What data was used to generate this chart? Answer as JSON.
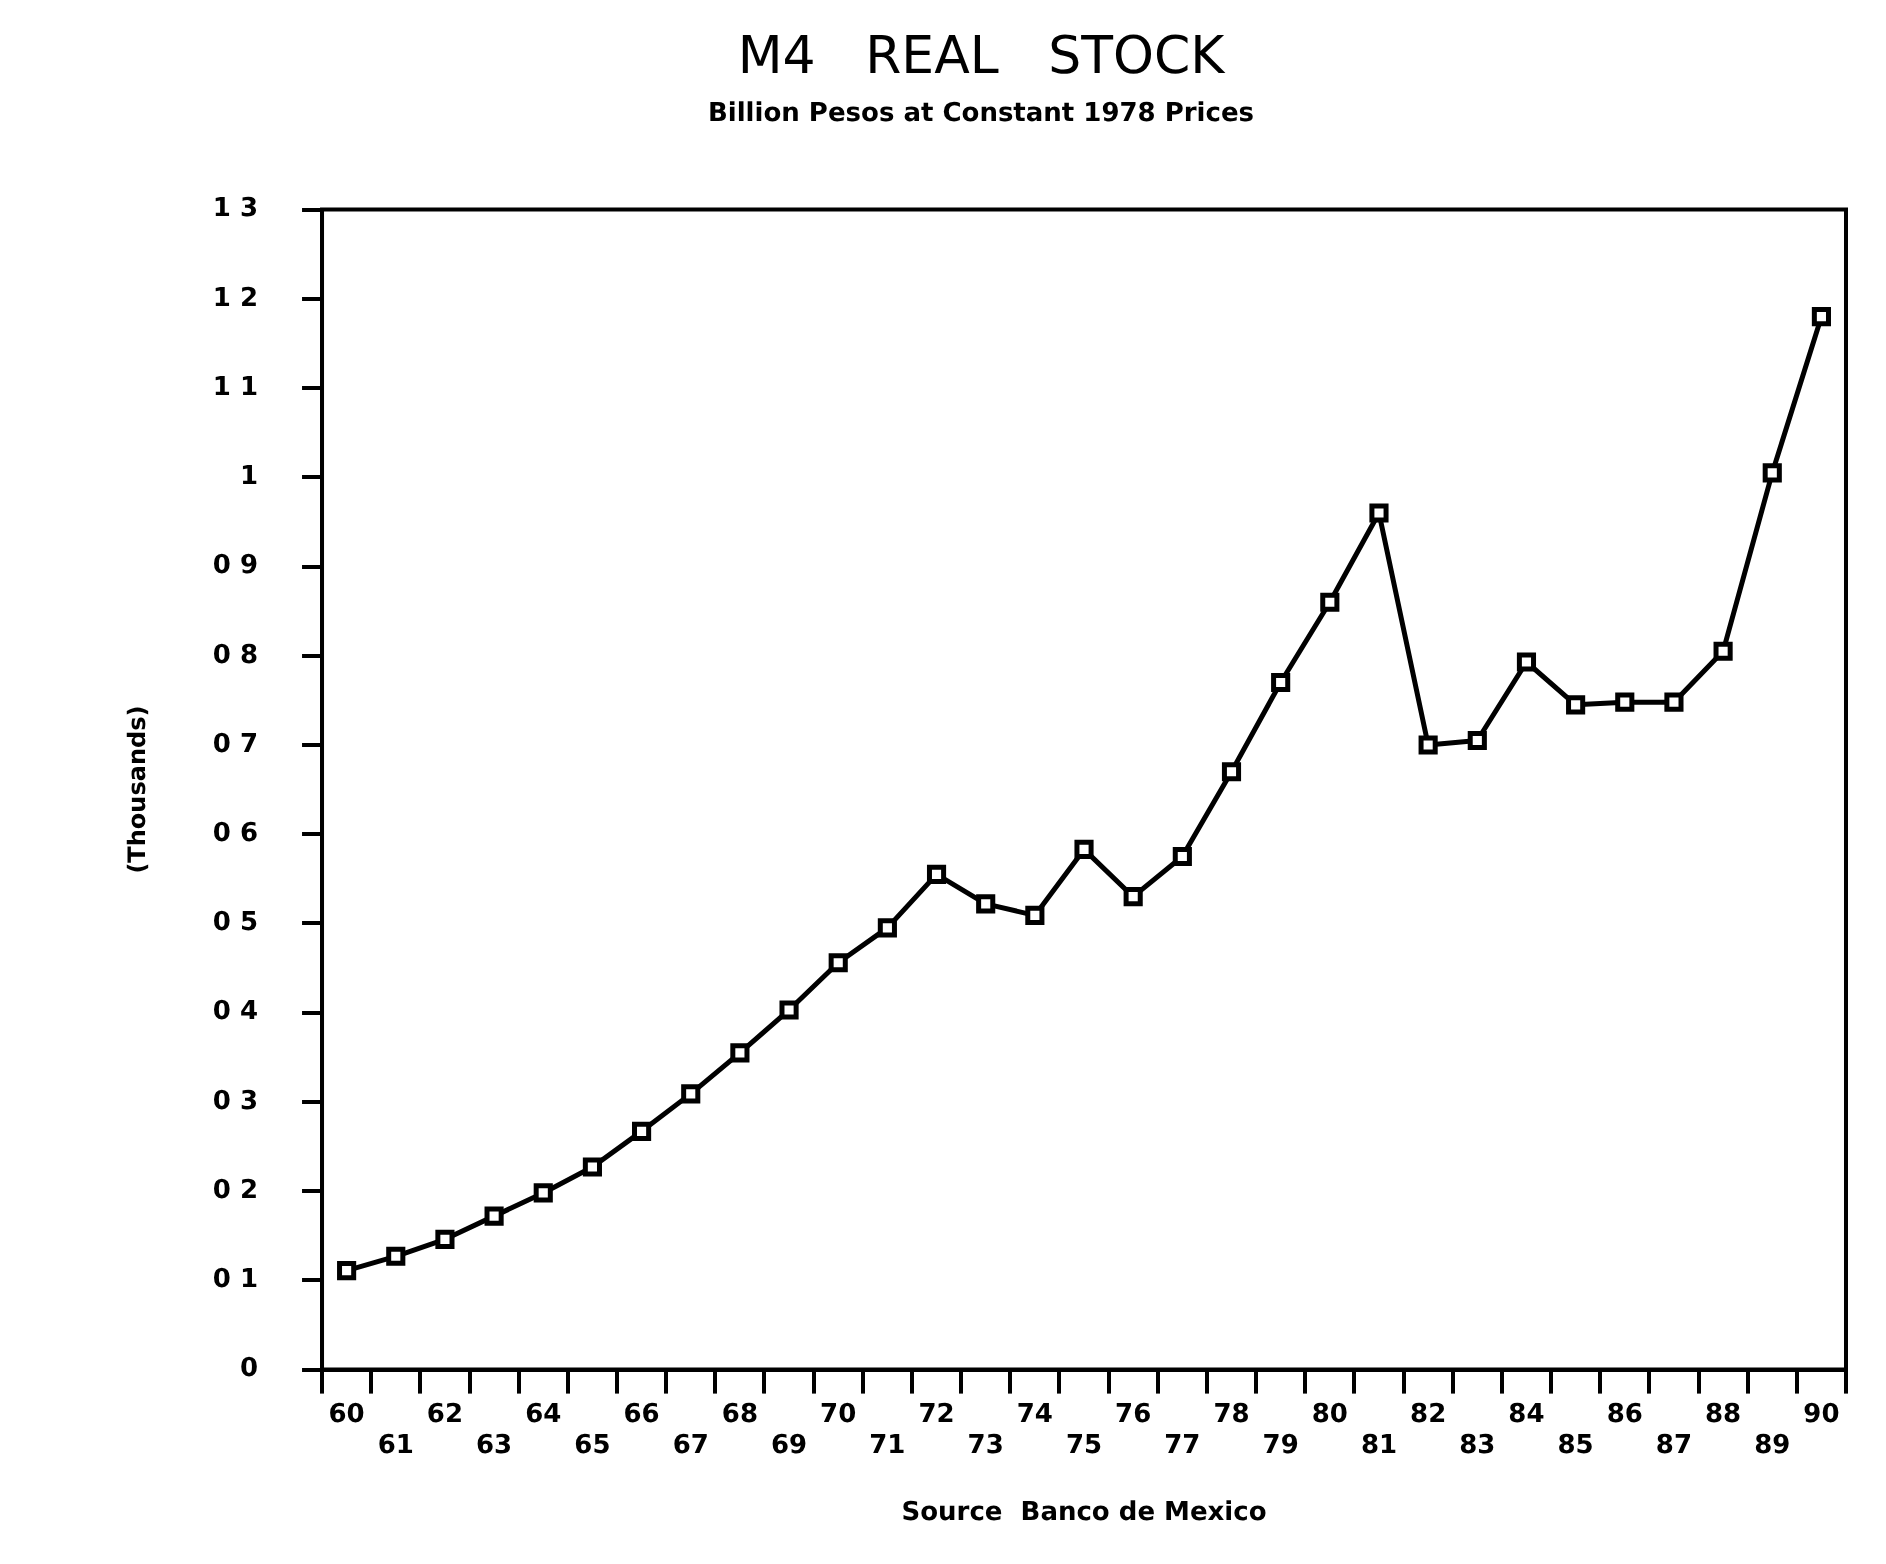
{
  "chart_data": {
    "type": "line",
    "title": "M4   REAL   STOCK",
    "subtitle": "Billion Pesos at Constant 1978 Prices",
    "ylabel": "(Thousands)",
    "annotations": [
      "Source  Banco de Mexico"
    ],
    "categories": [
      "60",
      "61",
      "62",
      "63",
      "64",
      "65",
      "66",
      "67",
      "68",
      "69",
      "70",
      "71",
      "72",
      "73",
      "74",
      "75",
      "76",
      "77",
      "78",
      "79",
      "80",
      "81",
      "82",
      "83",
      "84",
      "85",
      "86",
      "87",
      "88",
      "89",
      "90"
    ],
    "series": [
      {
        "color": "#000000",
        "values": [
          0.111,
          0.127,
          0.146,
          0.172,
          0.198,
          0.227,
          0.267,
          0.309,
          0.355,
          0.403,
          0.456,
          0.495,
          0.555,
          0.522,
          0.509,
          0.583,
          0.53,
          0.575,
          0.67,
          0.77,
          0.86,
          0.96,
          0.7,
          0.705,
          0.793,
          0.745,
          0.748,
          0.748,
          0.805,
          1.005,
          1.18
        ]
      }
    ],
    "ylim": [
      0,
      1.3
    ],
    "yticks": [
      {
        "value": 0,
        "label": "0"
      },
      {
        "value": 0.1,
        "label": "0 1"
      },
      {
        "value": 0.2,
        "label": "0 2"
      },
      {
        "value": 0.3,
        "label": "0 3"
      },
      {
        "value": 0.4,
        "label": "0 4"
      },
      {
        "value": 0.5,
        "label": "0 5"
      },
      {
        "value": 0.6,
        "label": "0 6"
      },
      {
        "value": 0.7,
        "label": "0 7"
      },
      {
        "value": 0.8,
        "label": "0 8"
      },
      {
        "value": 0.9,
        "label": "0 9"
      },
      {
        "value": 1,
        "label": "1"
      },
      {
        "value": 1.1,
        "label": "1 1"
      },
      {
        "value": 1.2,
        "label": "1 2"
      },
      {
        "value": 1.3,
        "label": "1 3"
      }
    ],
    "grid": false,
    "legend": false,
    "marker": "square",
    "line_style": "solid"
  }
}
